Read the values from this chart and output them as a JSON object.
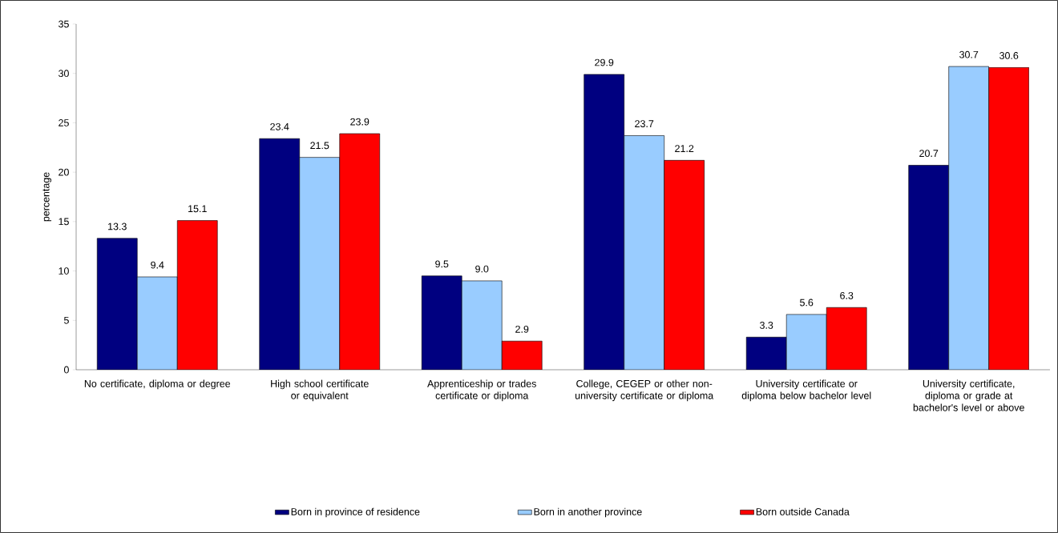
{
  "chart_data": {
    "type": "bar",
    "ylabel": "percentage",
    "categories": [
      "No certificate, diploma or degree",
      "High school certificate or equivalent",
      "Apprenticeship or trades certificate or diploma",
      "College, CEGEP or other non-university certificate or diploma",
      "University certificate or diploma below bachelor level",
      "University certificate, diploma or grade at bachelor's level or above"
    ],
    "series": [
      {
        "name": "Born in province of residence",
        "color": "#000080",
        "values": [
          13.3,
          23.4,
          9.5,
          29.9,
          3.3,
          20.7
        ],
        "value_labels": [
          "13.3",
          "23.4",
          "9.5",
          "29.9",
          "3.3",
          "20.7"
        ]
      },
      {
        "name": "Born in another province",
        "color": "#99ccff",
        "values": [
          9.4,
          21.5,
          9.0,
          23.7,
          5.6,
          30.7
        ],
        "value_labels": [
          "9.4",
          "21.5",
          "9.0",
          "23.7",
          "5.6",
          "30.7"
        ]
      },
      {
        "name": "Born outside Canada",
        "color": "#ff0000",
        "values": [
          15.1,
          23.9,
          2.9,
          21.2,
          6.3,
          30.6
        ],
        "value_labels": [
          "15.1",
          "23.9",
          "2.9",
          "21.2",
          "6.3",
          "30.6"
        ]
      }
    ],
    "ylim": [
      0,
      35
    ],
    "yticks": [
      0,
      5,
      10,
      15,
      20,
      25,
      30,
      35
    ],
    "legend": "bottom",
    "grid": false
  }
}
